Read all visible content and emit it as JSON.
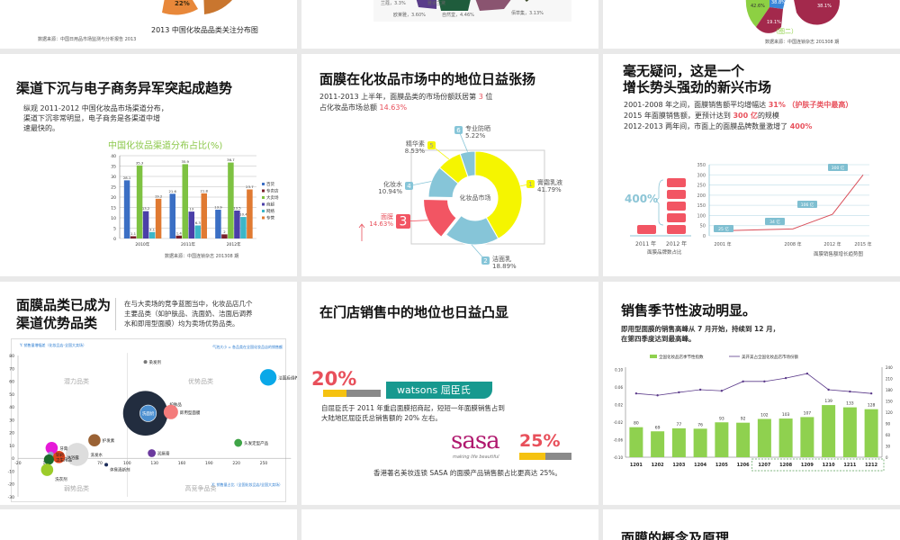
{
  "top_row": {
    "slide1_caption": "2013 中国化妆品品类关注分布图",
    "slide1_source": "数据来源：中国日用品市场监测与分析报告 2013",
    "slide1_pie_label": "22%",
    "slide2_labels": [
      "兰蔻，3.3%",
      "雅诗兰黛",
      "欧莱雅，3.60%",
      "自然堂，4.46%",
      "佰草集，3.13%"
    ],
    "slide3_labels": [
      "42.6%",
      "38.8%",
      "19.1%",
      "38.1%"
    ],
    "slide3_caption": "（图二）",
    "slide3_source": "数据来源：中国连锁杂志 201308 期"
  },
  "slide_channel": {
    "title": "渠道下沉与电子商务异军突起成趋势",
    "body": [
      "纵观 2011-2012 中国化妆品市场渠道分布，",
      "渠道下沉非常明显，电子商务是各渠道中增",
      "速最快的。"
    ],
    "source": "数据来源：中国连锁杂志 201308 期"
  },
  "slide_share": {
    "title": "面膜在化妆品市场中的地位日益张扬",
    "line1_pre": "2011-2013 上半年，面膜品类的市场份额跃居第 ",
    "line1_rank": "3",
    "line1_post": " 位",
    "line2_pre": "占化妆品市场总额 ",
    "line2_value": "14.63%",
    "center_label": "化妆品市场"
  },
  "slide_growth": {
    "title_lines": [
      "毫无疑问，这是一个",
      "增长势头强劲的新兴市场"
    ],
    "l1_pre": "2001-2008 年之间，面膜销售额平均增幅达 ",
    "l1_value": "31%",
    "l1_note": "（护肤子类中最高）",
    "l2_pre": "2015 年面膜销售额，更预计达到 ",
    "l2_value": "300 亿",
    "l2_post": "的规模",
    "l3_pre": "2012-2013 两年间，市面上的面膜品牌数量激增了 ",
    "l3_value": "400%",
    "brand_pct": "400%",
    "brand_years": [
      "2011 年",
      "2012 年"
    ],
    "brand_caption": "面膜品牌数占比",
    "line_caption": "面膜销售额增长趋势图"
  },
  "slide_bubble": {
    "title_lines": [
      "面膜品类已成为",
      "渠道优势品类"
    ],
    "body": [
      "在与大卖场的竞争蓝图当中，化妆品店几个",
      "主要品类（如护肤品、洗面奶、洁面后调养",
      "水和即用型面膜）均为卖场优势品类。"
    ]
  },
  "slide_store": {
    "title": "在门店销售中的地位也日益凸显",
    "watsons_pct": "20%",
    "watsons_pct_value": 20,
    "watsons_logo": "watsons 屈臣氏",
    "watsons_text": [
      "自屈臣氏于 2011 年重启面膜招商起，短短一年面膜销售占到",
      "大陆地区屈臣氏总销售额的 20% 左右。"
    ],
    "sasa_logo": "sasa",
    "sasa_tagline": "making life beautiful",
    "sasa_pct": "25%",
    "sasa_pct_value": 25,
    "sasa_text": "香港著名美妆连锁 SASA 的面膜产品销售额占比更高达 25%。",
    "colors": {
      "pct": "#e8505b",
      "bar_fill": "#f5c211",
      "bar_bg": "#8a8a8a",
      "watsons": "#17998f",
      "sasa": "#b0186e"
    }
  },
  "slide_season": {
    "title": "销售季节性波动明显。",
    "body": [
      "即用型面膜的销售高峰从 7 月开始，持续到 12 月，",
      "在第四季度达到最高峰。"
    ]
  },
  "slide_bottom": {
    "title": "面膜的概念及原理"
  },
  "chart_data": [
    {
      "type": "bar",
      "title": "中国化妆品渠道分布占比(%)",
      "categories": [
        "2010年",
        "2011年",
        "2012年"
      ],
      "ylim": [
        0,
        40
      ],
      "yticks": [
        0,
        5,
        10,
        15,
        20,
        25,
        30,
        35,
        40
      ],
      "grid": true,
      "legend": "right",
      "series": [
        {
          "name": "百货",
          "color": "#3b6fc4",
          "values": [
            28.1,
            21.6,
            13.9
          ]
        },
        {
          "name": "专卖店",
          "color": "#7a1f2b",
          "values": [
            1.1,
            1.4,
            2
          ]
        },
        {
          "name": "大卖场",
          "color": "#7ec242",
          "values": [
            35.3,
            35.9,
            36.7
          ]
        },
        {
          "name": "商超",
          "color": "#4b3fa8",
          "values": [
            13.2,
            13,
            13.5
          ]
        },
        {
          "name": "网络",
          "color": "#3cb6c8",
          "values": [
            3.1,
            6.3,
            10.4
          ]
        },
        {
          "name": "专营",
          "color": "#e07a32",
          "values": [
            19.2,
            21.8,
            23.7
          ]
        }
      ]
    },
    {
      "type": "pie",
      "slices": [
        {
          "rank": "1",
          "name": "膏霜乳液",
          "value": 41.79,
          "label": "41.79%",
          "color": "#f5f500"
        },
        {
          "rank": "2",
          "name": "洁面乳",
          "value": 18.89,
          "label": "18.89%",
          "color": "#86c5d8"
        },
        {
          "rank": "3",
          "name": "面膜",
          "value": 14.63,
          "label": "14.63%",
          "color": "#f25563"
        },
        {
          "rank": "4",
          "name": "化妆水",
          "value": 10.94,
          "label": "10.94%",
          "color": "#86c5d8"
        },
        {
          "rank": "5",
          "name": "精华素",
          "value": 8.53,
          "label": "8.53%",
          "color": "#f5f500"
        },
        {
          "rank": "6",
          "name": "专业防晒",
          "value": 5.22,
          "label": "5.22%",
          "color": "#86c5d8"
        }
      ]
    },
    {
      "type": "bar",
      "categories": [
        "2011 年",
        "2012 年"
      ],
      "values": [
        1,
        5
      ],
      "color": "#f25563"
    },
    {
      "type": "line",
      "x": [
        "2001 年",
        "2008 年",
        "2012 年",
        "2015 年"
      ],
      "values": [
        25,
        34,
        106,
        300
      ],
      "labels": [
        "25 亿",
        "34 亿",
        "106 亿",
        "300 亿"
      ],
      "ylim": [
        0,
        350
      ],
      "yticks": [
        0,
        50,
        100,
        150,
        200,
        250,
        300,
        350
      ],
      "grid": true,
      "color": "#d9505b"
    },
    {
      "type": "scatter",
      "ylabel": "Y: 销售量增幅差（化妆品店-全国大卖场）",
      "xlabel": "X: 销售量占比（全国化妆品店/全国大卖场）",
      "size_note": "气泡大小 = 各品类在全国化妆品店的销售额",
      "xlim": [
        -20,
        280
      ],
      "ylim": [
        -30,
        80
      ],
      "xticks": [
        -20,
        10,
        40,
        70,
        100,
        130,
        160,
        190,
        220,
        250
      ],
      "yticks": [
        -30,
        -20,
        -10,
        0,
        10,
        20,
        30,
        40,
        50,
        60,
        70,
        80
      ],
      "quadrants": [
        "潜力品类",
        "优势品类",
        "弱势品类",
        "高竞争品类"
      ],
      "points": [
        {
          "name": "染发剂",
          "x": 120,
          "y": 75,
          "size": 1,
          "color": "#777777"
        },
        {
          "name": "洁面后调养水",
          "x": 255,
          "y": 63,
          "size": 7,
          "color": "#0aa8e8"
        },
        {
          "name": "护肤品",
          "x": 120,
          "y": 35,
          "size": 20,
          "color": "#222d3f"
        },
        {
          "name": "洗面奶",
          "x": 123,
          "y": 35,
          "size": 7,
          "color": "#4b8fd0"
        },
        {
          "name": "即用型面膜",
          "x": 148,
          "y": 36,
          "size": 6,
          "color": "#f47c7c"
        },
        {
          "name": "护发素",
          "x": 64,
          "y": 14,
          "size": 5,
          "color": "#9a6234"
        },
        {
          "name": "头发定型产品",
          "x": 222,
          "y": 12,
          "size": 3,
          "color": "#3fa447"
        },
        {
          "name": "润唇膏",
          "x": 127,
          "y": 4,
          "size": 3,
          "color": "#6b3a9e"
        },
        {
          "name": "洗发水",
          "x": 45,
          "y": 3,
          "size": 10,
          "color": "#dddddd"
        },
        {
          "name": "沐浴露",
          "x": 25,
          "y": 1,
          "size": 5,
          "color": "#e0461c"
        },
        {
          "name": "牙膏",
          "x": 17,
          "y": 8,
          "size": 5,
          "color": "#e619d8"
        },
        {
          "name": "牙刷",
          "x": 16,
          "y": 3,
          "size": 2,
          "color": "#8fa8c8"
        },
        {
          "name": "卫生用品",
          "x": 14,
          "y": -1,
          "size": 4,
          "color": "#1b6b2a"
        },
        {
          "name": "洗衣剂",
          "x": 12,
          "y": -9,
          "size": 5,
          "color": "#9ccc2a"
        },
        {
          "name": "体臭清新剂",
          "x": 77,
          "y": -5,
          "size": 1,
          "color": "#1b2c5a"
        }
      ]
    },
    {
      "type": "bar",
      "categories": [
        "1201",
        "1202",
        "1203",
        "1204",
        "1205",
        "1206",
        "1207",
        "1208",
        "1209",
        "1210",
        "1211",
        "1212"
      ],
      "left_ylim": [
        -0.1,
        0.1
      ],
      "left_yticks": [
        "-0.10",
        "-0.06",
        "-0.02",
        "0.02",
        "0.06",
        "0.10"
      ],
      "right_ylim": [
        0,
        240
      ],
      "right_yticks": [
        0,
        30,
        60,
        90,
        120,
        150,
        180,
        210,
        240
      ],
      "legend": "top",
      "series": [
        {
          "name": "全国化妆品店季节性指数",
          "type": "bar",
          "color": "#8fd14f",
          "values": [
            80,
            69,
            77,
            76,
            93,
            92,
            102,
            103,
            107,
            139,
            133,
            128
          ]
        },
        {
          "name": "美开美占全国化妆品店市场份额",
          "type": "line",
          "color": "#5b3a8a",
          "values": [
            170,
            165,
            173,
            180,
            177,
            202,
            202,
            211,
            223,
            180,
            175,
            170
          ]
        }
      ],
      "highlight": [
        "1207",
        "1212"
      ]
    }
  ]
}
